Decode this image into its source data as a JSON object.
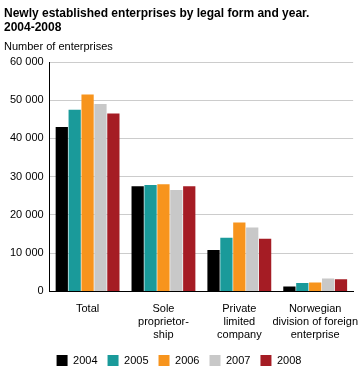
{
  "chart_data": {
    "type": "bar",
    "title": "Newly established enterprises by legal form and year. 2004-2008",
    "y_label": "Number of enterprises",
    "categories": [
      "Total",
      "Sole\nproprietor-\nship",
      "Private\nlimited\ncompany",
      "Norwegian\ndivision of foreign\nenterprise"
    ],
    "series": [
      {
        "name": "2004",
        "color": "#000000",
        "values": [
          43000,
          27500,
          10800,
          1300
        ]
      },
      {
        "name": "2005",
        "color": "#1a9a9a",
        "values": [
          47500,
          27800,
          14000,
          2200
        ]
      },
      {
        "name": "2006",
        "color": "#f7941d",
        "values": [
          51500,
          28000,
          18000,
          2300
        ]
      },
      {
        "name": "2007",
        "color": "#c8c8c8",
        "values": [
          49000,
          26500,
          16700,
          3400
        ]
      },
      {
        "name": "2008",
        "color": "#a51c24",
        "values": [
          46500,
          27500,
          13800,
          3200
        ]
      }
    ],
    "ylim": [
      0,
      60000
    ],
    "yticks": [
      0,
      {
        "value": 10000,
        "label": "10 000"
      },
      {
        "value": 20000,
        "label": "20 000"
      },
      {
        "value": 30000,
        "label": "30 000"
      },
      {
        "value": 40000,
        "label": "40 000"
      },
      {
        "value": 50000,
        "label": "50 000"
      },
      {
        "value": 60000,
        "label": "60 000"
      }
    ],
    "grid": true,
    "legend": "bottom"
  }
}
